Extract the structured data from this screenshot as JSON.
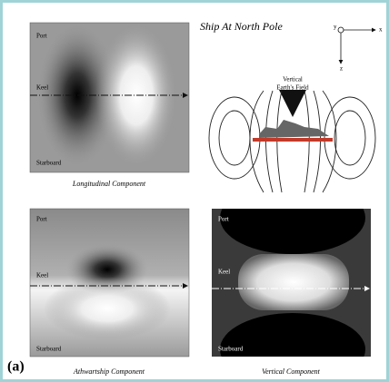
{
  "title": "Ship At North Pole",
  "field_label": [
    "Vertical",
    "Earth's Field"
  ],
  "axes": {
    "y": "y",
    "x": "x",
    "z": "z"
  },
  "panels": [
    {
      "labels": [
        "Port",
        "Keel",
        "Starboard"
      ],
      "caption": "Longitudinal Component"
    },
    {
      "labels": [
        "Port",
        "Keel",
        "Starboard"
      ],
      "caption": "Athwartship Component"
    },
    {
      "labels": [
        "Port",
        "Keel",
        "Starboard"
      ],
      "caption": "Vertical Component"
    }
  ],
  "figure_label": "(a)"
}
